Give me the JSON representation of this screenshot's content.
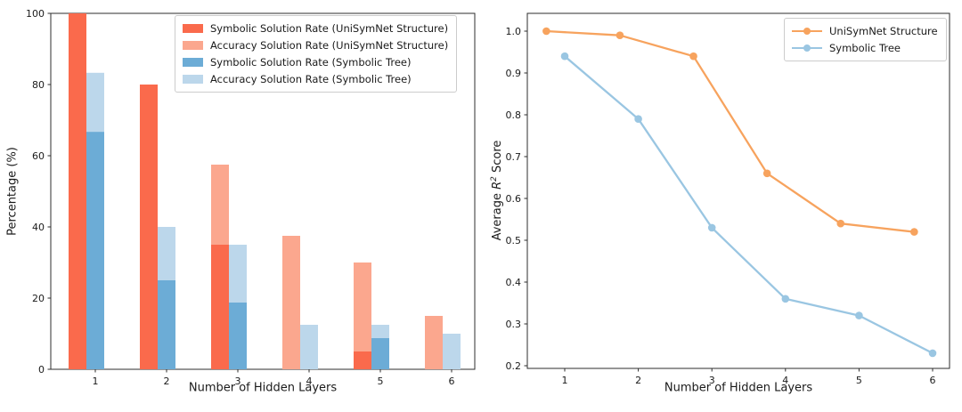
{
  "figure": {
    "background": "#ffffff"
  },
  "chart_data": [
    {
      "type": "bar",
      "panel": "left",
      "title": "",
      "xlabel": "Number of Hidden Layers",
      "ylabel": "Percentage (%)",
      "categories": [
        1,
        2,
        3,
        4,
        5,
        6
      ],
      "xtick_labels": [
        "1",
        "2",
        "3",
        "4",
        "5",
        "6"
      ],
      "yticks": [
        0,
        20,
        40,
        60,
        80,
        100
      ],
      "ylim": [
        0,
        100
      ],
      "grid": false,
      "legend_position": "upper right",
      "bar_layout": "two slots per category: UniSymNet pair left of tick, Symbolic-Tree pair at tick; light 'Accuracy' bar drawn behind, dark 'Symbolic' bar overlaid in front",
      "series": [
        {
          "name": "Symbolic Solution Rate (UniSymNet Structure)",
          "color": "#fa6a4c",
          "slot": "unisymnet",
          "layer": "front",
          "values": [
            100,
            80,
            35,
            0,
            5,
            0
          ]
        },
        {
          "name": "Accuracy Solution Rate (UniSymNet Structure)",
          "color": "#fba78e",
          "slot": "unisymnet",
          "layer": "back",
          "values": [
            100,
            80,
            57.5,
            37.5,
            30,
            15
          ]
        },
        {
          "name": "Symbolic Solution Rate (Symbolic Tree)",
          "color": "#6cacd6",
          "slot": "tree",
          "layer": "front",
          "values": [
            66.7,
            25,
            18.75,
            0,
            8.75,
            0
          ]
        },
        {
          "name": "Accuracy Solution Rate (Symbolic Tree)",
          "color": "#bcd7eb",
          "slot": "tree",
          "layer": "back",
          "values": [
            83.3,
            40,
            35,
            12.5,
            12.5,
            10
          ]
        }
      ]
    },
    {
      "type": "line",
      "panel": "right",
      "title": "",
      "xlabel": "Number of Hidden Layers",
      "ylabel": "Average R² Score",
      "ylabel_parts": [
        "Average ",
        "R",
        "2",
        " Score"
      ],
      "x": [
        1,
        2,
        3,
        4,
        5,
        6
      ],
      "xtick_labels": [
        "1",
        "2",
        "3",
        "4",
        "5",
        "6"
      ],
      "yticks": [
        0.2,
        0.3,
        0.4,
        0.5,
        0.6,
        0.7,
        0.8,
        0.9,
        1.0
      ],
      "ylim": [
        0.19,
        1.04
      ],
      "grid": false,
      "legend_position": "upper right",
      "series": [
        {
          "name": "UniSymNet Structure",
          "color": "#f7a35e",
          "marker": "circle",
          "x_offset": -0.25,
          "values": [
            1.0,
            0.99,
            0.94,
            0.66,
            0.54,
            0.52
          ]
        },
        {
          "name": "Symbolic Tree",
          "color": "#9ac6e2",
          "marker": "circle",
          "x_offset": 0,
          "values": [
            0.94,
            0.79,
            0.53,
            0.36,
            0.32,
            0.23
          ]
        }
      ]
    }
  ]
}
